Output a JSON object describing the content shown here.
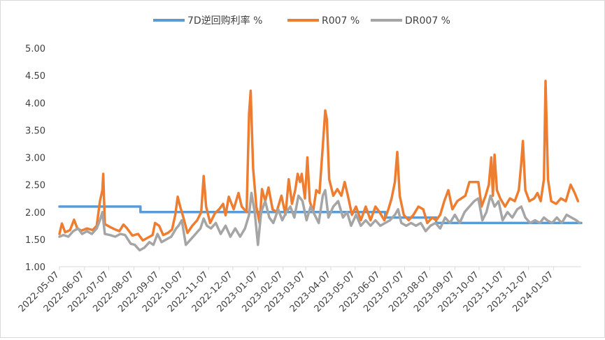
{
  "chart_data": {
    "type": "line",
    "title": "",
    "xlabel": "",
    "ylabel": "",
    "ylim": [
      1.0,
      5.0
    ],
    "y_ticks": [
      "1.00",
      "1.50",
      "2.00",
      "2.50",
      "3.00",
      "3.50",
      "4.00",
      "4.50",
      "5.00"
    ],
    "x_ticks": [
      "2022-05-07",
      "2022-06-07",
      "2022-07-07",
      "2022-08-07",
      "2022-09-07",
      "2022-10-07",
      "2022-11-07",
      "2022-12-07",
      "2023-01-07",
      "2023-02-07",
      "2023-03-07",
      "2023-04-07",
      "2023-05-07",
      "2023-06-07",
      "2023-07-07",
      "2023-08-07",
      "2023-09-07",
      "2023-10-07",
      "2023-11-07",
      "2023-12-07",
      "2024-01-07"
    ],
    "legend_position": "top",
    "grid": false,
    "series": [
      {
        "name": "7D逆回购利率 %",
        "color": "#5b9bd5",
        "points": [
          [
            "2022-05-07",
            2.1
          ],
          [
            "2022-08-14",
            2.1
          ],
          [
            "2022-08-15",
            2.0
          ],
          [
            "2023-06-12",
            2.0
          ],
          [
            "2023-06-13",
            1.9
          ],
          [
            "2023-08-14",
            1.9
          ],
          [
            "2023-08-15",
            1.8
          ],
          [
            "2024-02-10",
            1.8
          ]
        ]
      },
      {
        "name": "R007 %",
        "color": "#ed7d31",
        "points": [
          [
            "2022-05-07",
            1.6
          ],
          [
            "2022-05-10",
            1.79
          ],
          [
            "2022-05-14",
            1.63
          ],
          [
            "2022-05-20",
            1.67
          ],
          [
            "2022-05-25",
            1.86
          ],
          [
            "2022-05-29",
            1.7
          ],
          [
            "2022-06-03",
            1.66
          ],
          [
            "2022-06-10",
            1.7
          ],
          [
            "2022-06-17",
            1.67
          ],
          [
            "2022-06-22",
            1.75
          ],
          [
            "2022-06-26",
            2.2
          ],
          [
            "2022-06-29",
            2.4
          ],
          [
            "2022-06-30",
            2.7
          ],
          [
            "2022-07-02",
            1.78
          ],
          [
            "2022-07-08",
            1.73
          ],
          [
            "2022-07-15",
            1.68
          ],
          [
            "2022-07-20",
            1.65
          ],
          [
            "2022-07-25",
            1.77
          ],
          [
            "2022-07-29",
            1.71
          ],
          [
            "2022-08-05",
            1.57
          ],
          [
            "2022-08-12",
            1.6
          ],
          [
            "2022-08-18",
            1.48
          ],
          [
            "2022-08-24",
            1.53
          ],
          [
            "2022-08-30",
            1.58
          ],
          [
            "2022-09-02",
            1.8
          ],
          [
            "2022-09-07",
            1.75
          ],
          [
            "2022-09-12",
            1.58
          ],
          [
            "2022-09-18",
            1.62
          ],
          [
            "2022-09-23",
            1.68
          ],
          [
            "2022-09-27",
            1.95
          ],
          [
            "2022-09-30",
            2.28
          ],
          [
            "2022-10-03",
            2.1
          ],
          [
            "2022-10-07",
            1.9
          ],
          [
            "2022-10-12",
            1.62
          ],
          [
            "2022-10-18",
            1.75
          ],
          [
            "2022-10-24",
            1.85
          ],
          [
            "2022-10-29",
            2.0
          ],
          [
            "2022-11-01",
            2.66
          ],
          [
            "2022-11-04",
            2.1
          ],
          [
            "2022-11-09",
            1.8
          ],
          [
            "2022-11-15",
            1.98
          ],
          [
            "2022-11-20",
            2.05
          ],
          [
            "2022-11-25",
            2.15
          ],
          [
            "2022-11-28",
            1.94
          ],
          [
            "2022-12-02",
            2.28
          ],
          [
            "2022-12-08",
            2.05
          ],
          [
            "2022-12-14",
            2.35
          ],
          [
            "2022-12-18",
            2.1
          ],
          [
            "2022-12-24",
            2.0
          ],
          [
            "2022-12-27",
            3.8
          ],
          [
            "2022-12-29",
            4.22
          ],
          [
            "2023-01-01",
            2.8
          ],
          [
            "2023-01-05",
            2.1
          ],
          [
            "2023-01-09",
            1.8
          ],
          [
            "2023-01-12",
            2.42
          ],
          [
            "2023-01-16",
            2.2
          ],
          [
            "2023-01-20",
            2.45
          ],
          [
            "2023-01-25",
            2.05
          ],
          [
            "2023-01-30",
            2.0
          ],
          [
            "2023-02-05",
            2.3
          ],
          [
            "2023-02-10",
            1.95
          ],
          [
            "2023-02-14",
            2.6
          ],
          [
            "2023-02-18",
            2.15
          ],
          [
            "2023-02-22",
            2.4
          ],
          [
            "2023-02-25",
            2.7
          ],
          [
            "2023-02-28",
            2.55
          ],
          [
            "2023-03-02",
            2.7
          ],
          [
            "2023-03-06",
            2.25
          ],
          [
            "2023-03-09",
            3.0
          ],
          [
            "2023-03-12",
            2.2
          ],
          [
            "2023-03-16",
            2.0
          ],
          [
            "2023-03-20",
            2.4
          ],
          [
            "2023-03-24",
            2.35
          ],
          [
            "2023-03-28",
            3.2
          ],
          [
            "2023-03-31",
            3.86
          ],
          [
            "2023-04-02",
            3.7
          ],
          [
            "2023-04-05",
            2.6
          ],
          [
            "2023-04-10",
            2.3
          ],
          [
            "2023-04-15",
            2.42
          ],
          [
            "2023-04-20",
            2.3
          ],
          [
            "2023-04-24",
            2.55
          ],
          [
            "2023-04-28",
            2.3
          ],
          [
            "2023-05-03",
            1.95
          ],
          [
            "2023-05-08",
            2.1
          ],
          [
            "2023-05-14",
            1.85
          ],
          [
            "2023-05-20",
            2.1
          ],
          [
            "2023-05-26",
            1.85
          ],
          [
            "2023-06-01",
            2.1
          ],
          [
            "2023-06-06",
            2.0
          ],
          [
            "2023-06-12",
            1.85
          ],
          [
            "2023-06-17",
            2.05
          ],
          [
            "2023-06-21",
            2.25
          ],
          [
            "2023-06-25",
            2.55
          ],
          [
            "2023-06-28",
            3.1
          ],
          [
            "2023-07-01",
            2.3
          ],
          [
            "2023-07-06",
            1.95
          ],
          [
            "2023-07-12",
            1.85
          ],
          [
            "2023-07-18",
            1.95
          ],
          [
            "2023-07-24",
            2.1
          ],
          [
            "2023-07-30",
            2.05
          ],
          [
            "2023-08-04",
            1.8
          ],
          [
            "2023-08-10",
            1.9
          ],
          [
            "2023-08-15",
            1.85
          ],
          [
            "2023-08-20",
            1.95
          ],
          [
            "2023-08-25",
            2.2
          ],
          [
            "2023-08-30",
            2.4
          ],
          [
            "2023-09-04",
            2.05
          ],
          [
            "2023-09-10",
            2.2
          ],
          [
            "2023-09-15",
            2.25
          ],
          [
            "2023-09-20",
            2.3
          ],
          [
            "2023-09-25",
            2.55
          ],
          [
            "2023-10-01",
            2.55
          ],
          [
            "2023-10-06",
            2.55
          ],
          [
            "2023-10-10",
            2.1
          ],
          [
            "2023-10-15",
            2.3
          ],
          [
            "2023-10-19",
            2.5
          ],
          [
            "2023-10-22",
            3.0
          ],
          [
            "2023-10-24",
            2.3
          ],
          [
            "2023-10-26",
            3.05
          ],
          [
            "2023-10-29",
            2.4
          ],
          [
            "2023-11-02",
            2.25
          ],
          [
            "2023-11-08",
            2.1
          ],
          [
            "2023-11-14",
            2.25
          ],
          [
            "2023-11-20",
            2.2
          ],
          [
            "2023-11-25",
            2.4
          ],
          [
            "2023-11-28",
            2.9
          ],
          [
            "2023-11-30",
            3.3
          ],
          [
            "2023-12-03",
            2.4
          ],
          [
            "2023-12-08",
            2.2
          ],
          [
            "2023-12-14",
            2.25
          ],
          [
            "2023-12-18",
            2.35
          ],
          [
            "2023-12-22",
            2.2
          ],
          [
            "2023-12-26",
            2.6
          ],
          [
            "2023-12-28",
            4.4
          ],
          [
            "2023-12-31",
            2.6
          ],
          [
            "2024-01-04",
            2.2
          ],
          [
            "2024-01-10",
            2.15
          ],
          [
            "2024-01-16",
            2.25
          ],
          [
            "2024-01-22",
            2.2
          ],
          [
            "2024-01-28",
            2.5
          ],
          [
            "2024-02-02",
            2.35
          ],
          [
            "2024-02-06",
            2.2
          ]
        ]
      },
      {
        "name": "DR007 %",
        "color": "#a5a5a5",
        "points": [
          [
            "2022-05-07",
            1.55
          ],
          [
            "2022-05-12",
            1.58
          ],
          [
            "2022-05-18",
            1.55
          ],
          [
            "2022-05-24",
            1.65
          ],
          [
            "2022-05-30",
            1.7
          ],
          [
            "2022-06-04",
            1.6
          ],
          [
            "2022-06-10",
            1.65
          ],
          [
            "2022-06-16",
            1.6
          ],
          [
            "2022-06-22",
            1.7
          ],
          [
            "2022-06-26",
            1.85
          ],
          [
            "2022-06-29",
            2.0
          ],
          [
            "2022-07-02",
            1.6
          ],
          [
            "2022-07-08",
            1.58
          ],
          [
            "2022-07-15",
            1.55
          ],
          [
            "2022-07-21",
            1.6
          ],
          [
            "2022-07-27",
            1.58
          ],
          [
            "2022-08-03",
            1.42
          ],
          [
            "2022-08-08",
            1.4
          ],
          [
            "2022-08-14",
            1.3
          ],
          [
            "2022-08-20",
            1.35
          ],
          [
            "2022-08-26",
            1.45
          ],
          [
            "2022-08-31",
            1.4
          ],
          [
            "2022-09-05",
            1.6
          ],
          [
            "2022-09-10",
            1.45
          ],
          [
            "2022-09-16",
            1.5
          ],
          [
            "2022-09-22",
            1.55
          ],
          [
            "2022-09-28",
            1.7
          ],
          [
            "2022-10-01",
            1.75
          ],
          [
            "2022-10-05",
            1.85
          ],
          [
            "2022-10-10",
            1.4
          ],
          [
            "2022-10-16",
            1.5
          ],
          [
            "2022-10-22",
            1.6
          ],
          [
            "2022-10-28",
            1.7
          ],
          [
            "2022-11-01",
            1.88
          ],
          [
            "2022-11-05",
            1.75
          ],
          [
            "2022-11-10",
            1.7
          ],
          [
            "2022-11-16",
            1.8
          ],
          [
            "2022-11-22",
            1.6
          ],
          [
            "2022-11-28",
            1.75
          ],
          [
            "2022-12-04",
            1.55
          ],
          [
            "2022-12-10",
            1.7
          ],
          [
            "2022-12-16",
            1.55
          ],
          [
            "2022-12-22",
            1.7
          ],
          [
            "2022-12-27",
            1.95
          ],
          [
            "2022-12-30",
            2.35
          ],
          [
            "2023-01-03",
            2.0
          ],
          [
            "2023-01-07",
            1.4
          ],
          [
            "2023-01-11",
            2.0
          ],
          [
            "2023-01-16",
            2.2
          ],
          [
            "2023-01-21",
            1.9
          ],
          [
            "2023-01-26",
            1.8
          ],
          [
            "2023-02-01",
            2.05
          ],
          [
            "2023-02-06",
            1.85
          ],
          [
            "2023-02-11",
            2.0
          ],
          [
            "2023-02-16",
            2.1
          ],
          [
            "2023-02-21",
            1.9
          ],
          [
            "2023-02-26",
            2.3
          ],
          [
            "2023-03-03",
            2.2
          ],
          [
            "2023-03-08",
            1.85
          ],
          [
            "2023-03-13",
            2.1
          ],
          [
            "2023-03-18",
            1.95
          ],
          [
            "2023-03-23",
            1.8
          ],
          [
            "2023-03-28",
            2.3
          ],
          [
            "2023-03-31",
            2.4
          ],
          [
            "2023-04-04",
            1.9
          ],
          [
            "2023-04-10",
            2.1
          ],
          [
            "2023-04-16",
            2.2
          ],
          [
            "2023-04-22",
            1.9
          ],
          [
            "2023-04-27",
            2.0
          ],
          [
            "2023-05-02",
            1.75
          ],
          [
            "2023-05-08",
            1.95
          ],
          [
            "2023-05-14",
            1.75
          ],
          [
            "2023-05-20",
            1.85
          ],
          [
            "2023-05-26",
            1.75
          ],
          [
            "2023-06-01",
            1.85
          ],
          [
            "2023-06-07",
            1.75
          ],
          [
            "2023-06-13",
            1.8
          ],
          [
            "2023-06-19",
            1.85
          ],
          [
            "2023-06-25",
            1.95
          ],
          [
            "2023-06-29",
            2.05
          ],
          [
            "2023-07-03",
            1.8
          ],
          [
            "2023-07-09",
            1.75
          ],
          [
            "2023-07-15",
            1.8
          ],
          [
            "2023-07-21",
            1.75
          ],
          [
            "2023-07-27",
            1.8
          ],
          [
            "2023-08-02",
            1.65
          ],
          [
            "2023-08-08",
            1.75
          ],
          [
            "2023-08-14",
            1.8
          ],
          [
            "2023-08-20",
            1.7
          ],
          [
            "2023-08-26",
            1.9
          ],
          [
            "2023-09-01",
            1.8
          ],
          [
            "2023-09-07",
            1.95
          ],
          [
            "2023-09-13",
            1.8
          ],
          [
            "2023-09-19",
            2.0
          ],
          [
            "2023-09-25",
            2.1
          ],
          [
            "2023-10-01",
            2.2
          ],
          [
            "2023-10-06",
            2.25
          ],
          [
            "2023-10-11",
            1.85
          ],
          [
            "2023-10-16",
            2.0
          ],
          [
            "2023-10-21",
            2.3
          ],
          [
            "2023-10-26",
            2.1
          ],
          [
            "2023-10-31",
            2.2
          ],
          [
            "2023-11-05",
            1.85
          ],
          [
            "2023-11-11",
            2.0
          ],
          [
            "2023-11-17",
            1.9
          ],
          [
            "2023-11-23",
            2.05
          ],
          [
            "2023-11-28",
            2.1
          ],
          [
            "2023-12-03",
            1.9
          ],
          [
            "2023-12-09",
            1.8
          ],
          [
            "2023-12-15",
            1.85
          ],
          [
            "2023-12-21",
            1.8
          ],
          [
            "2023-12-26",
            1.9
          ],
          [
            "2023-12-30",
            1.85
          ],
          [
            "2024-01-05",
            1.8
          ],
          [
            "2024-01-11",
            1.9
          ],
          [
            "2024-01-17",
            1.8
          ],
          [
            "2024-01-23",
            1.95
          ],
          [
            "2024-01-29",
            1.9
          ],
          [
            "2024-02-04",
            1.85
          ],
          [
            "2024-02-08",
            1.8
          ]
        ]
      }
    ]
  }
}
